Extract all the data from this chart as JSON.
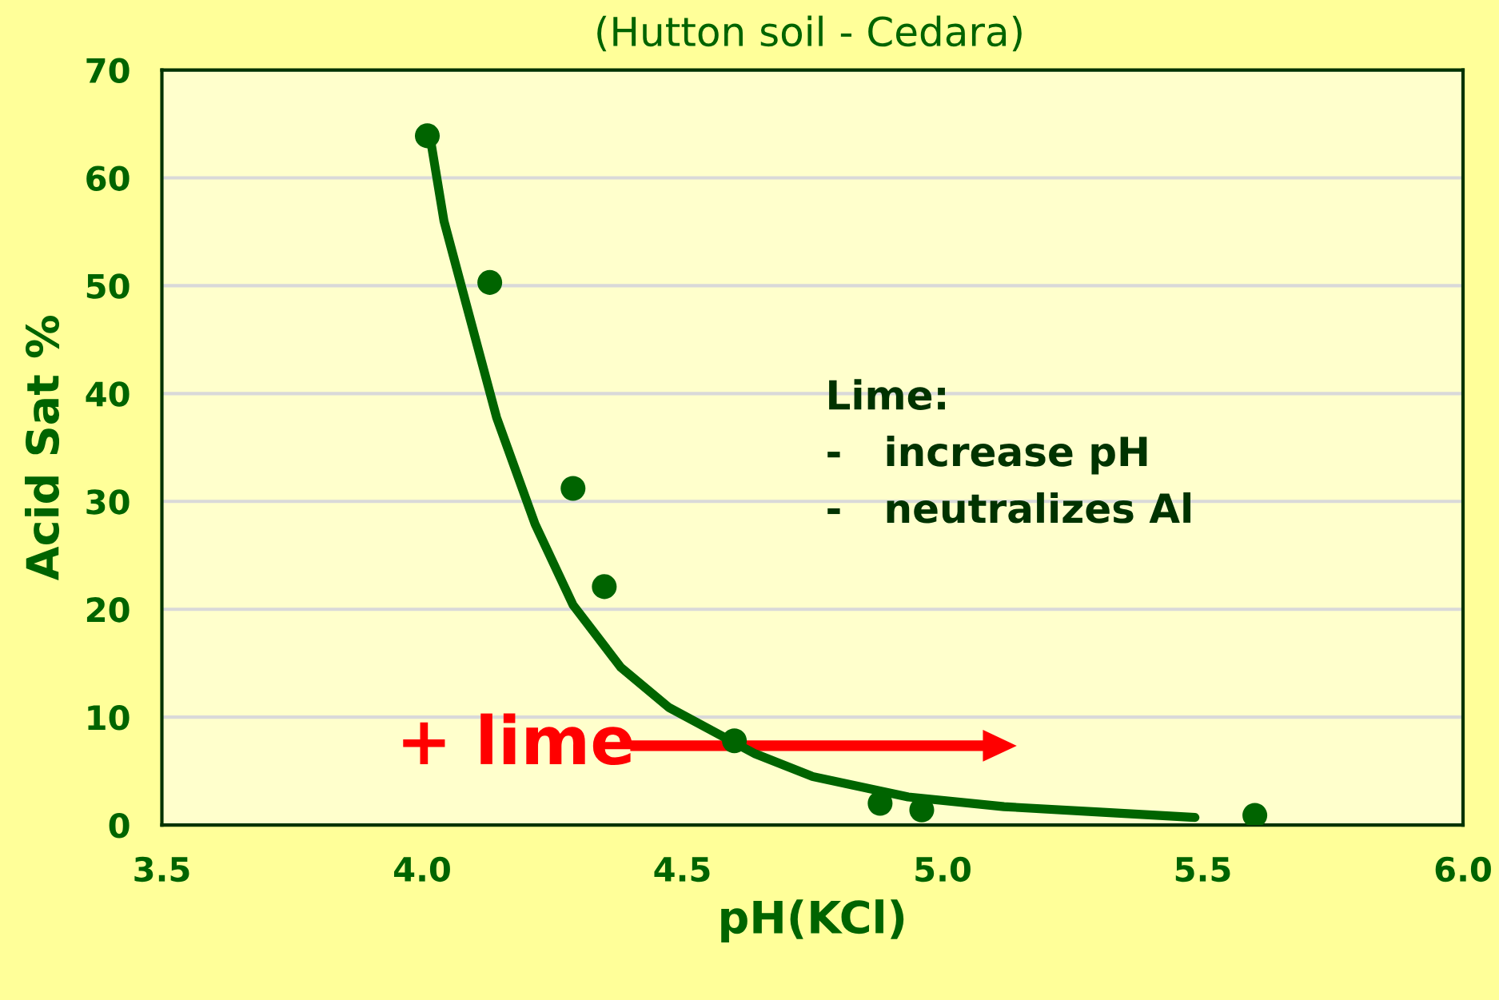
{
  "chart_data": {
    "type": "scatter",
    "subtitle": "(Hutton soil - Cedara)",
    "xlabel": "pH(KCl)",
    "ylabel": "Acid Sat %",
    "series": [
      {
        "color": "#006400",
        "marker": "circle",
        "x": [
          4.01,
          4.13,
          4.29,
          4.35,
          4.6,
          4.88,
          4.96,
          5.6
        ],
        "values": [
          63.9,
          50.3,
          31.2,
          22.1,
          7.8,
          2.0,
          1.4,
          0.9
        ]
      },
      {
        "type": "line",
        "color": "#006400",
        "x": [
          4.018,
          4.042,
          4.088,
          4.143,
          4.217,
          4.29,
          4.382,
          4.474,
          4.64,
          4.75,
          4.934,
          5.118,
          5.301,
          5.485
        ],
        "values": [
          63,
          56,
          47.7,
          37.8,
          27.9,
          20.4,
          14.6,
          10.9,
          6.6,
          4.5,
          2.6,
          1.7,
          1.2,
          0.7
        ]
      }
    ],
    "xlim": [
      3.5,
      6.0
    ],
    "xticks": [
      3.5,
      {
        "value": 4.0,
        "label": "4.0"
      },
      4.5,
      {
        "value": 5.0,
        "label": "5.0"
      },
      5.5,
      {
        "value": 6.0,
        "label": "6.0"
      }
    ],
    "ylim": [
      0,
      70
    ],
    "yticks": [
      0,
      10,
      20,
      30,
      40,
      50,
      60,
      70
    ],
    "grid": "y",
    "annotations": [
      "+ lime",
      "Lime:",
      "-   increase pH",
      "-   neutralizes Al"
    ]
  }
}
